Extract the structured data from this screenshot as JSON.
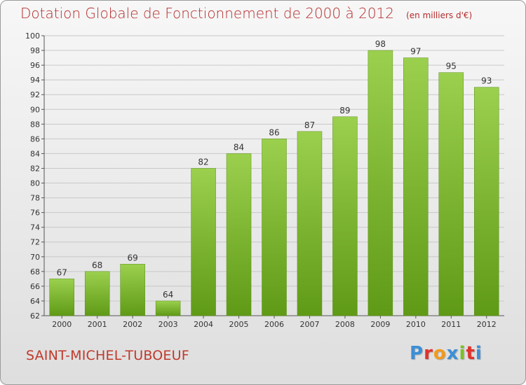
{
  "header": {
    "title": "Dotation Globale de Fonctionnement de 2000 à 2012",
    "subtitle": "(en milliers d'€)"
  },
  "footer": {
    "commune": "SAINT-MICHEL-TUBOEUF",
    "logo": "Proxiti",
    "logo_colors": [
      "#3b8fd6",
      "#e0322c",
      "#f19a1c",
      "#3b8fd6",
      "#7cbf2a",
      "#e0322c",
      "#3b8fd6"
    ]
  },
  "chart_data": {
    "type": "bar",
    "categories": [
      "2000",
      "2001",
      "2002",
      "2003",
      "2004",
      "2005",
      "2006",
      "2007",
      "2008",
      "2009",
      "2010",
      "2011",
      "2012"
    ],
    "values": [
      67,
      68,
      69,
      64,
      82,
      84,
      86,
      87,
      89,
      98,
      97,
      95,
      93
    ],
    "ylim": [
      62,
      100
    ],
    "yticks": [
      62,
      64,
      66,
      68,
      70,
      72,
      74,
      76,
      78,
      80,
      82,
      84,
      86,
      88,
      90,
      92,
      94,
      96,
      98,
      100
    ],
    "grid": true,
    "bar_color_top": "#9bd04e",
    "bar_color_bottom": "#5f9a16"
  }
}
